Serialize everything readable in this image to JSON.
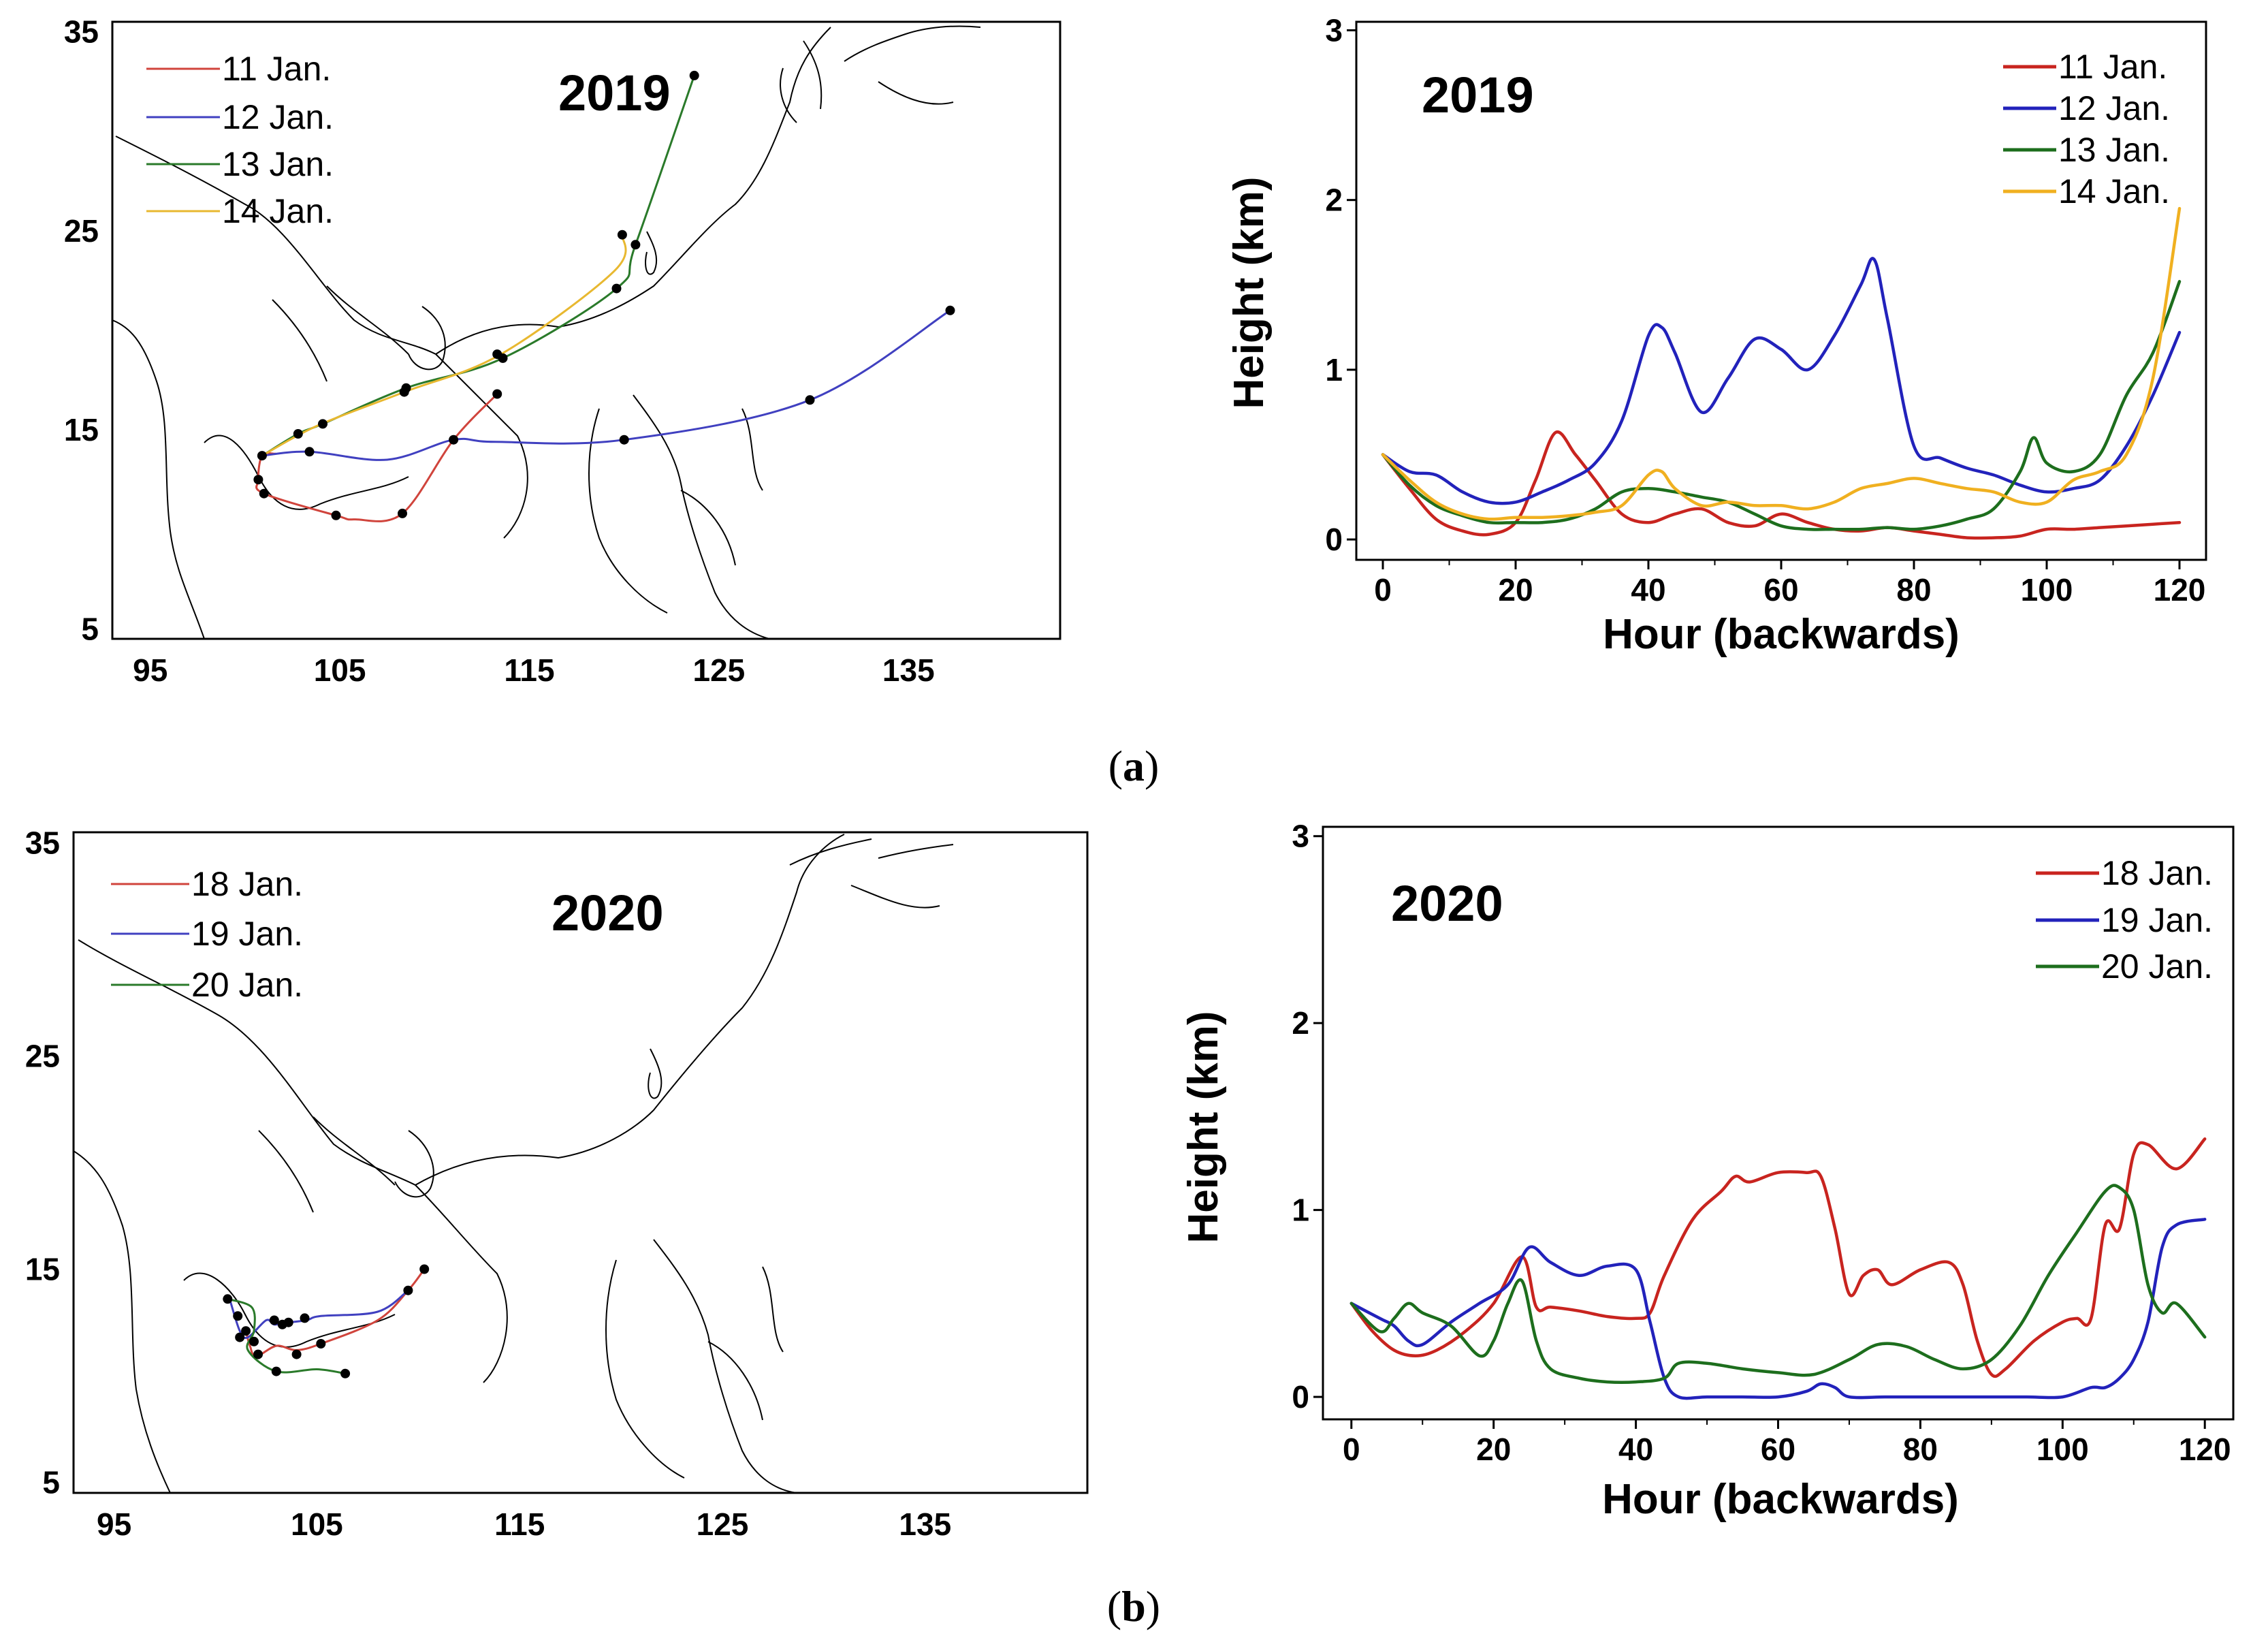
{
  "colors": {
    "red": "#c8241f",
    "blue": "#2222bb",
    "green": "#1d6e1d",
    "orange": "#f0b020",
    "map_red": "#d0443c",
    "map_blue": "#4040c0",
    "map_green": "#2a7a2a",
    "map_orange": "#e8b830"
  },
  "panel_labels": [
    {
      "open": "(",
      "letter": "a",
      "close": ")"
    },
    {
      "open": "(",
      "letter": "b",
      "close": ")"
    }
  ],
  "chart_data": [
    {
      "id": "map-2019",
      "type": "line",
      "title": "2019",
      "xlim": [
        93,
        143
      ],
      "ylim": [
        4.5,
        35.5
      ],
      "x_ticks": [
        95,
        105,
        115,
        125,
        135
      ],
      "y_ticks": [
        5,
        15,
        25,
        35
      ],
      "legend_position": "top-left",
      "series": [
        {
          "name": "11 Jan.",
          "color_key": "map_red",
          "points": [
            [
              113.3,
              16.8
            ],
            [
              111,
              14.5
            ],
            [
              108.3,
              10.8
            ],
            [
              105.8,
              10.5
            ],
            [
              104.8,
              10.7
            ],
            [
              101,
              11.8
            ],
            [
              100.7,
              12.5
            ],
            [
              100.9,
              13.7
            ],
            [
              101.6,
              13.8
            ]
          ]
        },
        {
          "name": "12 Jan.",
          "color_key": "map_blue",
          "points": [
            [
              137.2,
              21
            ],
            [
              129.8,
              16.5
            ],
            [
              120,
              14.5
            ],
            [
              113.2,
              14.4
            ],
            [
              111,
              14.5
            ],
            [
              107.5,
              13.5
            ],
            [
              103.4,
              13.9
            ],
            [
              100.9,
              13.7
            ]
          ]
        },
        {
          "name": "13 Jan.",
          "color_key": "map_green",
          "points": [
            [
              123.7,
              32.8
            ],
            [
              120.6,
              24.3
            ],
            [
              119.6,
              22.1
            ],
            [
              113.6,
              18.6
            ],
            [
              108.5,
              17.1
            ],
            [
              104.1,
              15.3
            ],
            [
              102.8,
              14.8
            ],
            [
              100.9,
              13.7
            ]
          ]
        },
        {
          "name": "14 Jan.",
          "color_key": "map_orange",
          "points": [
            [
              119.9,
              24.8
            ],
            [
              119.5,
              23
            ],
            [
              113.5,
              18.8
            ],
            [
              108.4,
              16.9
            ],
            [
              103.8,
              15.2
            ],
            [
              100.9,
              13.7
            ]
          ]
        }
      ],
      "markers": [
        [
          123.7,
          32.8
        ],
        [
          137.2,
          21
        ],
        [
          129.8,
          16.5
        ],
        [
          120,
          14.5
        ],
        [
          119.9,
          24.8
        ],
        [
          120.6,
          24.3
        ],
        [
          119.6,
          22.1
        ],
        [
          113.6,
          18.6
        ],
        [
          113.3,
          18.8
        ],
        [
          108.5,
          17.1
        ],
        [
          108.4,
          16.9
        ],
        [
          104.1,
          15.3
        ],
        [
          102.8,
          14.8
        ],
        [
          113.3,
          16.8
        ],
        [
          111,
          14.5
        ],
        [
          108.3,
          10.8
        ],
        [
          104.8,
          10.7
        ],
        [
          103.4,
          13.9
        ],
        [
          100.9,
          13.7
        ],
        [
          100.7,
          12.5
        ],
        [
          101,
          11.8
        ]
      ]
    },
    {
      "id": "height-2019",
      "type": "line",
      "title": "2019",
      "xlabel": "Hour (backwards)",
      "ylabel": "Height (km)",
      "xlim": [
        -4,
        124
      ],
      "ylim": [
        -0.12,
        3.05
      ],
      "x_ticks": [
        0,
        20,
        40,
        60,
        80,
        100,
        120
      ],
      "y_ticks": [
        0,
        1,
        2,
        3
      ],
      "legend_position": "top-right",
      "series": [
        {
          "name": "11 Jan.",
          "color_key": "red",
          "x": [
            0,
            4,
            8,
            12,
            16,
            20,
            23,
            26,
            29,
            32,
            36,
            40,
            44,
            48,
            52,
            56,
            60,
            64,
            68,
            72,
            76,
            80,
            84,
            88,
            92,
            96,
            100,
            104,
            108,
            112,
            116,
            120
          ],
          "y": [
            0.5,
            0.3,
            0.12,
            0.05,
            0.03,
            0.1,
            0.35,
            0.63,
            0.5,
            0.35,
            0.15,
            0.1,
            0.15,
            0.18,
            0.1,
            0.08,
            0.15,
            0.1,
            0.06,
            0.05,
            0.07,
            0.05,
            0.03,
            0.01,
            0.01,
            0.02,
            0.06,
            0.06,
            0.07,
            0.08,
            0.09,
            0.1
          ]
        },
        {
          "name": "12 Jan.",
          "color_key": "blue",
          "x": [
            0,
            4,
            8,
            12,
            16,
            20,
            24,
            28,
            32,
            36,
            40,
            42,
            44,
            48,
            52,
            56,
            60,
            64,
            68,
            72,
            74,
            76,
            80,
            84,
            88,
            92,
            96,
            100,
            104,
            108,
            112,
            116,
            120
          ],
          "y": [
            0.5,
            0.4,
            0.38,
            0.28,
            0.22,
            0.22,
            0.28,
            0.35,
            0.45,
            0.7,
            1.2,
            1.25,
            1.1,
            0.75,
            0.95,
            1.18,
            1.12,
            1.0,
            1.2,
            1.5,
            1.65,
            1.3,
            0.55,
            0.48,
            0.42,
            0.38,
            0.32,
            0.28,
            0.3,
            0.35,
            0.55,
            0.85,
            1.22
          ]
        },
        {
          "name": "13 Jan.",
          "color_key": "green",
          "x": [
            0,
            4,
            8,
            12,
            16,
            20,
            24,
            28,
            32,
            36,
            40,
            44,
            48,
            52,
            56,
            60,
            64,
            68,
            72,
            76,
            80,
            84,
            88,
            92,
            96,
            98,
            100,
            104,
            108,
            112,
            116,
            120
          ],
          "y": [
            0.5,
            0.32,
            0.2,
            0.14,
            0.1,
            0.1,
            0.1,
            0.12,
            0.18,
            0.28,
            0.3,
            0.28,
            0.25,
            0.22,
            0.15,
            0.08,
            0.06,
            0.06,
            0.06,
            0.07,
            0.06,
            0.08,
            0.12,
            0.18,
            0.4,
            0.6,
            0.45,
            0.4,
            0.5,
            0.85,
            1.1,
            1.52
          ]
        },
        {
          "name": "14 Jan.",
          "color_key": "orange",
          "x": [
            0,
            4,
            8,
            12,
            16,
            20,
            24,
            28,
            32,
            36,
            40,
            42,
            44,
            48,
            52,
            56,
            60,
            64,
            68,
            72,
            76,
            80,
            84,
            88,
            92,
            96,
            100,
            104,
            108,
            112,
            116,
            120
          ],
          "y": [
            0.5,
            0.35,
            0.22,
            0.15,
            0.12,
            0.13,
            0.13,
            0.14,
            0.16,
            0.2,
            0.38,
            0.4,
            0.3,
            0.2,
            0.22,
            0.2,
            0.2,
            0.18,
            0.22,
            0.3,
            0.33,
            0.36,
            0.33,
            0.3,
            0.28,
            0.22,
            0.22,
            0.35,
            0.4,
            0.5,
            0.95,
            1.95
          ]
        }
      ]
    },
    {
      "id": "map-2020",
      "type": "line",
      "title": "2020",
      "xlim": [
        93,
        143
      ],
      "ylim": [
        4.5,
        35.5
      ],
      "x_ticks": [
        95,
        105,
        115,
        125,
        135
      ],
      "y_ticks": [
        5,
        15,
        25,
        35
      ],
      "legend_position": "top-left",
      "series": [
        {
          "name": "18 Jan.",
          "color_key": "map_red",
          "points": [
            [
              110.3,
              15
            ],
            [
              109.5,
              14
            ],
            [
              108,
              12.6
            ],
            [
              105.2,
              11.5
            ],
            [
              104,
              11.2
            ],
            [
              103,
              11.4
            ],
            [
              102,
              10.9
            ],
            [
              101.7,
              11.4
            ],
            [
              101.5,
              12.1
            ],
            [
              101.6,
              11.8
            ]
          ]
        },
        {
          "name": "19 Jan.",
          "color_key": "map_blue",
          "points": [
            [
              109.5,
              14
            ],
            [
              108,
              13
            ],
            [
              105.2,
              12.8
            ],
            [
              104.5,
              12.6
            ],
            [
              103.6,
              12.5
            ],
            [
              102.9,
              12.4
            ],
            [
              102.5,
              12.6
            ],
            [
              101.6,
              11.8
            ],
            [
              101.2,
              12.1
            ],
            [
              100.7,
              13.6
            ]
          ]
        },
        {
          "name": "20 Jan.",
          "color_key": "map_green",
          "points": [
            [
              100.6,
              13.6
            ],
            [
              101.8,
              13.2
            ],
            [
              101.9,
              12.1
            ],
            [
              101.6,
              11.2
            ],
            [
              103,
              10.2
            ],
            [
              105,
              10.3
            ],
            [
              106.4,
              10.1
            ]
          ]
        }
      ],
      "markers": [
        [
          110.3,
          15
        ],
        [
          109.5,
          14
        ],
        [
          105.2,
          11.5
        ],
        [
          104,
          11
        ],
        [
          103,
          10.2
        ],
        [
          106.4,
          10.1
        ],
        [
          100.6,
          13.6
        ],
        [
          101.1,
          12.8
        ],
        [
          101.5,
          12.1
        ],
        [
          101.9,
          11.6
        ],
        [
          102.1,
          11
        ],
        [
          102.9,
          12.6
        ],
        [
          103.3,
          12.4
        ],
        [
          103.6,
          12.5
        ],
        [
          104.4,
          12.7
        ],
        [
          101.2,
          11.8
        ]
      ]
    },
    {
      "id": "height-2020",
      "type": "line",
      "title": "2020",
      "xlabel": "Hour (backwards)",
      "ylabel": "Height (km)",
      "xlim": [
        -4,
        124
      ],
      "ylim": [
        -0.12,
        3.05
      ],
      "x_ticks": [
        0,
        20,
        40,
        60,
        80,
        100,
        120
      ],
      "y_ticks": [
        0,
        1,
        2,
        3
      ],
      "legend_position": "top-right",
      "series": [
        {
          "name": "18 Jan.",
          "color_key": "red",
          "x": [
            0,
            3,
            6,
            9,
            12,
            16,
            20,
            24,
            26,
            28,
            32,
            36,
            40,
            42,
            44,
            48,
            52,
            54,
            56,
            60,
            64,
            66,
            68,
            70,
            72,
            74,
            76,
            80,
            84,
            86,
            88,
            90,
            92,
            96,
            100,
            102,
            104,
            106,
            108,
            110,
            112,
            116,
            120
          ],
          "y": [
            0.5,
            0.35,
            0.25,
            0.22,
            0.25,
            0.35,
            0.5,
            0.75,
            0.48,
            0.48,
            0.46,
            0.43,
            0.42,
            0.45,
            0.65,
            0.95,
            1.1,
            1.18,
            1.15,
            1.2,
            1.2,
            1.18,
            0.9,
            0.55,
            0.65,
            0.68,
            0.6,
            0.68,
            0.72,
            0.6,
            0.3,
            0.12,
            0.15,
            0.3,
            0.4,
            0.42,
            0.42,
            0.92,
            0.9,
            1.3,
            1.35,
            1.22,
            1.38
          ]
        },
        {
          "name": "19 Jan.",
          "color_key": "blue",
          "x": [
            0,
            4,
            6,
            8,
            10,
            14,
            18,
            22,
            25,
            28,
            32,
            36,
            40,
            42,
            44,
            46,
            50,
            55,
            60,
            64,
            66,
            68,
            70,
            75,
            80,
            85,
            90,
            95,
            100,
            104,
            106,
            108,
            110,
            112,
            114,
            116,
            120
          ],
          "y": [
            0.5,
            0.42,
            0.38,
            0.3,
            0.28,
            0.4,
            0.5,
            0.6,
            0.8,
            0.72,
            0.65,
            0.7,
            0.68,
            0.4,
            0.1,
            0.0,
            0.0,
            0.0,
            0.0,
            0.03,
            0.07,
            0.05,
            0.0,
            0.0,
            0.0,
            0.0,
            0.0,
            0.0,
            0.0,
            0.05,
            0.05,
            0.1,
            0.2,
            0.4,
            0.8,
            0.92,
            0.95
          ]
        },
        {
          "name": "20 Jan.",
          "color_key": "green",
          "x": [
            0,
            4,
            6,
            8,
            10,
            14,
            18,
            20,
            22,
            24,
            26,
            28,
            32,
            36,
            40,
            44,
            46,
            50,
            55,
            60,
            65,
            70,
            74,
            78,
            82,
            86,
            90,
            94,
            98,
            102,
            106,
            108,
            110,
            112,
            114,
            116,
            120
          ],
          "y": [
            0.5,
            0.35,
            0.42,
            0.5,
            0.45,
            0.38,
            0.22,
            0.3,
            0.5,
            0.62,
            0.3,
            0.15,
            0.1,
            0.08,
            0.08,
            0.1,
            0.18,
            0.18,
            0.15,
            0.13,
            0.12,
            0.2,
            0.28,
            0.27,
            0.2,
            0.15,
            0.2,
            0.38,
            0.65,
            0.88,
            1.1,
            1.12,
            1.0,
            0.6,
            0.45,
            0.5,
            0.32
          ]
        }
      ]
    }
  ]
}
